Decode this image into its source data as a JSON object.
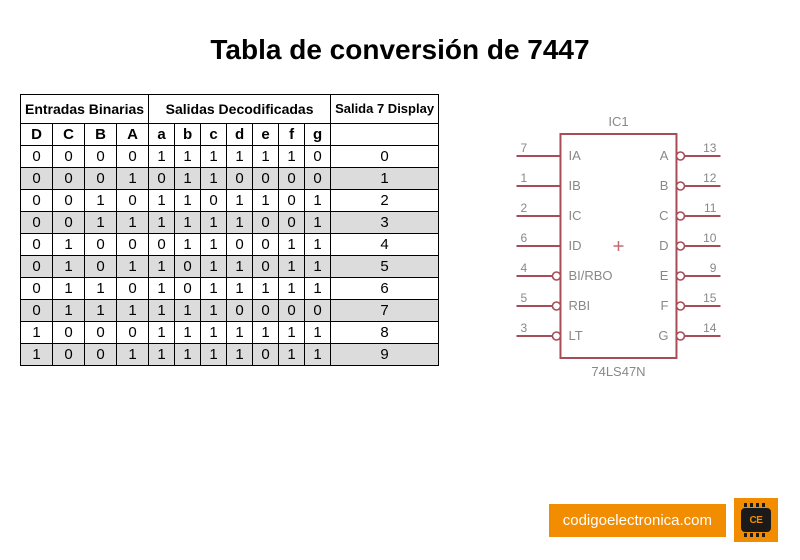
{
  "title": "Tabla de conversión de 7447",
  "table": {
    "group_headers": {
      "inputs": "Entradas Binarias",
      "outputs": "Salidas Decodificadas",
      "display": "Salida 7 Display"
    },
    "col_headers": [
      "D",
      "C",
      "B",
      "A",
      "a",
      "b",
      "c",
      "d",
      "e",
      "f",
      "g",
      ""
    ],
    "rows": [
      {
        "d": [
          "0",
          "0",
          "0",
          "0",
          "1",
          "1",
          "1",
          "1",
          "1",
          "1",
          "0",
          "0"
        ],
        "shaded": false
      },
      {
        "d": [
          "0",
          "0",
          "0",
          "1",
          "0",
          "1",
          "1",
          "0",
          "0",
          "0",
          "0",
          "1"
        ],
        "shaded": true
      },
      {
        "d": [
          "0",
          "0",
          "1",
          "0",
          "1",
          "1",
          "0",
          "1",
          "1",
          "0",
          "1",
          "2"
        ],
        "shaded": false
      },
      {
        "d": [
          "0",
          "0",
          "1",
          "1",
          "1",
          "1",
          "1",
          "1",
          "0",
          "0",
          "1",
          "3"
        ],
        "shaded": true
      },
      {
        "d": [
          "0",
          "1",
          "0",
          "0",
          "0",
          "1",
          "1",
          "0",
          "0",
          "1",
          "1",
          "4"
        ],
        "shaded": false
      },
      {
        "d": [
          "0",
          "1",
          "0",
          "1",
          "1",
          "0",
          "1",
          "1",
          "0",
          "1",
          "1",
          "5"
        ],
        "shaded": true
      },
      {
        "d": [
          "0",
          "1",
          "1",
          "0",
          "1",
          "0",
          "1",
          "1",
          "1",
          "1",
          "1",
          "6"
        ],
        "shaded": false
      },
      {
        "d": [
          "0",
          "1",
          "1",
          "1",
          "1",
          "1",
          "1",
          "0",
          "0",
          "0",
          "0",
          "7"
        ],
        "shaded": true
      },
      {
        "d": [
          "1",
          "0",
          "0",
          "0",
          "1",
          "1",
          "1",
          "1",
          "1",
          "1",
          "1",
          "8"
        ],
        "shaded": false
      },
      {
        "d": [
          "1",
          "0",
          "0",
          "1",
          "1",
          "1",
          "1",
          "1",
          "0",
          "1",
          "1",
          "9"
        ],
        "shaded": true
      }
    ],
    "border_color": "#000000",
    "shade_color": "#dcdcdc",
    "font_size": 15
  },
  "ic_diagram": {
    "ref": "IC1",
    "part": "74LS47N",
    "body_color": "#ffffff",
    "outline_color": "#a84c57",
    "pin_line_color": "#a84c57",
    "text_color": "#888888",
    "pin_font_size": 12,
    "label_font_size": 13,
    "left_pins": [
      {
        "num": "7",
        "label": "IA",
        "bubble": false
      },
      {
        "num": "1",
        "label": "IB",
        "bubble": false
      },
      {
        "num": "2",
        "label": "IC",
        "bubble": false
      },
      {
        "num": "6",
        "label": "ID",
        "bubble": false
      },
      {
        "num": "4",
        "label": "BI/RBO",
        "bubble": true
      },
      {
        "num": "5",
        "label": "RBI",
        "bubble": true
      },
      {
        "num": "3",
        "label": "LT",
        "bubble": true
      }
    ],
    "right_pins": [
      {
        "num": "13",
        "label": "A",
        "bubble": true
      },
      {
        "num": "12",
        "label": "B",
        "bubble": true
      },
      {
        "num": "11",
        "label": "C",
        "bubble": true
      },
      {
        "num": "10",
        "label": "D",
        "bubble": true
      },
      {
        "num": "9",
        "label": "E",
        "bubble": true
      },
      {
        "num": "15",
        "label": "F",
        "bubble": true
      },
      {
        "num": "14",
        "label": "G",
        "bubble": true
      }
    ],
    "plus_color": "#c46a70"
  },
  "footer": {
    "site": "codigoelectronica.com",
    "badge_text": "CE",
    "bg_color": "#f28c00",
    "text_color": "#ffffff"
  }
}
